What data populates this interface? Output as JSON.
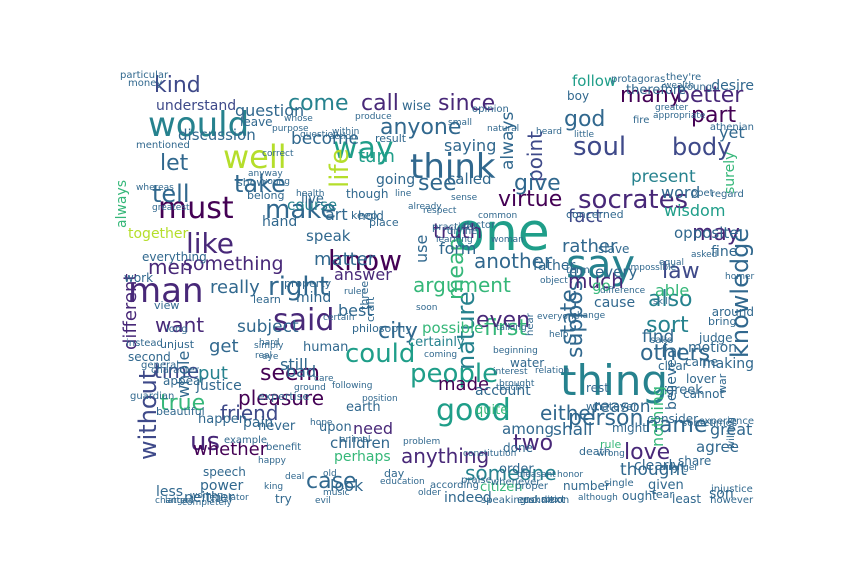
{
  "word_cloud": {
    "palette": [
      "#440154",
      "#482878",
      "#3e4989",
      "#31688e",
      "#26828e",
      "#1f9e89",
      "#35b779",
      "#6ece58",
      "#b5de2b",
      "#fde725"
    ],
    "words": [
      {
        "text": "one"
      },
      {
        "text": "thing"
      },
      {
        "text": "say"
      },
      {
        "text": "think"
      },
      {
        "text": "would"
      },
      {
        "text": "man"
      },
      {
        "text": "good"
      },
      {
        "text": "said"
      },
      {
        "text": "must"
      },
      {
        "text": "way"
      },
      {
        "text": "well"
      },
      {
        "text": "people"
      },
      {
        "text": "socrates"
      },
      {
        "text": "know"
      },
      {
        "text": "make"
      },
      {
        "text": "us"
      },
      {
        "text": "knowledge"
      },
      {
        "text": "like"
      },
      {
        "text": "nature"
      },
      {
        "text": "could"
      },
      {
        "text": "soul"
      },
      {
        "text": "pleasure"
      },
      {
        "text": "right"
      },
      {
        "text": "virtue"
      },
      {
        "text": "something"
      },
      {
        "text": "argument"
      },
      {
        "text": "city"
      },
      {
        "text": "whether"
      },
      {
        "text": "first"
      },
      {
        "text": "state"
      },
      {
        "text": "person"
      },
      {
        "text": "friend"
      },
      {
        "text": "body"
      },
      {
        "text": "even"
      },
      {
        "text": "part"
      },
      {
        "text": "another"
      },
      {
        "text": "without"
      },
      {
        "text": "life"
      },
      {
        "text": "call"
      },
      {
        "text": "since"
      },
      {
        "text": "many"
      },
      {
        "text": "better"
      },
      {
        "text": "point"
      },
      {
        "text": "kind"
      },
      {
        "text": "come"
      },
      {
        "text": "anyone"
      },
      {
        "text": "take"
      },
      {
        "text": "tell"
      },
      {
        "text": "let"
      },
      {
        "text": "see"
      },
      {
        "text": "give"
      },
      {
        "text": "god"
      },
      {
        "text": "may"
      },
      {
        "text": "law"
      },
      {
        "text": "also"
      },
      {
        "text": "sort"
      },
      {
        "text": "suppose"
      },
      {
        "text": "others"
      },
      {
        "text": "either"
      },
      {
        "text": "two"
      },
      {
        "text": "name"
      },
      {
        "text": "love"
      },
      {
        "text": "someone"
      },
      {
        "text": "case"
      },
      {
        "text": "anything"
      },
      {
        "text": "true"
      },
      {
        "text": "time"
      },
      {
        "text": "want"
      },
      {
        "text": "seem"
      },
      {
        "text": "men"
      },
      {
        "text": "mean"
      },
      {
        "text": "truth"
      },
      {
        "text": "much"
      },
      {
        "text": "fact"
      },
      {
        "text": "rather"
      },
      {
        "text": "answer"
      },
      {
        "text": "different"
      },
      {
        "text": "made"
      },
      {
        "text": "still"
      },
      {
        "text": "best"
      },
      {
        "text": "get"
      },
      {
        "text": "put"
      },
      {
        "text": "question"
      },
      {
        "text": "really"
      },
      {
        "text": "matter"
      },
      {
        "text": "become"
      },
      {
        "text": "turn"
      },
      {
        "text": "saying"
      },
      {
        "text": "always"
      },
      {
        "text": "word"
      },
      {
        "text": "present"
      },
      {
        "text": "wisdom"
      },
      {
        "text": "shall"
      },
      {
        "text": "reason"
      },
      {
        "text": "thought"
      },
      {
        "text": "find"
      },
      {
        "text": "far"
      },
      {
        "text": "nothing"
      },
      {
        "text": "possible"
      },
      {
        "text": "certainly"
      },
      {
        "text": "opposite"
      },
      {
        "text": "bad"
      },
      {
        "text": "look"
      },
      {
        "text": "need"
      },
      {
        "text": "whole"
      },
      {
        "text": "justice"
      },
      {
        "text": "subject"
      },
      {
        "text": "mind"
      },
      {
        "text": "speak"
      },
      {
        "text": "form"
      },
      {
        "text": "use"
      },
      {
        "text": "art"
      },
      {
        "text": "called"
      },
      {
        "text": "going"
      },
      {
        "text": "course"
      },
      {
        "text": "follow"
      },
      {
        "text": "father"
      },
      {
        "text": "wise"
      },
      {
        "text": "understand"
      },
      {
        "text": "discussion"
      },
      {
        "text": "hand"
      },
      {
        "text": "yet"
      },
      {
        "text": "surely"
      },
      {
        "text": "able"
      },
      {
        "text": "fine"
      },
      {
        "text": "every"
      },
      {
        "text": "go"
      },
      {
        "text": "cause"
      },
      {
        "text": "among"
      },
      {
        "text": "done"
      },
      {
        "text": "account"
      },
      {
        "text": "quite"
      },
      {
        "text": "children"
      },
      {
        "text": "perhaps"
      },
      {
        "text": "less"
      },
      {
        "text": "neither"
      },
      {
        "text": "power"
      },
      {
        "text": "indeed"
      },
      {
        "text": "citizen"
      },
      {
        "text": "order"
      },
      {
        "text": "great"
      },
      {
        "text": "agree"
      },
      {
        "text": "son"
      },
      {
        "text": "given"
      },
      {
        "text": "clearly"
      },
      {
        "text": "believe"
      },
      {
        "text": "therefore"
      },
      {
        "text": "desire"
      },
      {
        "text": "boy"
      },
      {
        "text": "always"
      },
      {
        "text": "together"
      },
      {
        "text": "everything"
      },
      {
        "text": "work"
      },
      {
        "text": "view"
      },
      {
        "text": "unjust"
      },
      {
        "text": "second"
      },
      {
        "text": "appear"
      },
      {
        "text": "pain"
      },
      {
        "text": "never"
      },
      {
        "text": "speech"
      },
      {
        "text": "try"
      },
      {
        "text": "human"
      },
      {
        "text": "happen"
      },
      {
        "text": "beautiful"
      },
      {
        "text": "upon"
      },
      {
        "text": "earth"
      },
      {
        "text": "consider"
      },
      {
        "text": "death"
      },
      {
        "text": "cannot"
      },
      {
        "text": "making"
      },
      {
        "text": "motion"
      },
      {
        "text": "clear"
      },
      {
        "text": "judge"
      },
      {
        "text": "bring"
      },
      {
        "text": "around"
      },
      {
        "text": "greek"
      },
      {
        "text": "lover"
      },
      {
        "text": "water"
      },
      {
        "text": "rest"
      },
      {
        "text": "ought"
      },
      {
        "text": "fear"
      },
      {
        "text": "least"
      },
      {
        "text": "share"
      },
      {
        "text": "number"
      },
      {
        "text": "next"
      },
      {
        "text": "end"
      },
      {
        "text": "came"
      },
      {
        "text": "might"
      },
      {
        "text": "whatever"
      },
      {
        "text": "rule"
      },
      {
        "text": "live"
      },
      {
        "text": "though"
      },
      {
        "text": "keep"
      },
      {
        "text": "hold"
      },
      {
        "text": "place"
      },
      {
        "text": "leave"
      },
      {
        "text": "show"
      },
      {
        "text": "belong"
      },
      {
        "text": "learn"
      },
      {
        "text": "property"
      },
      {
        "text": "result"
      },
      {
        "text": "concerned"
      },
      {
        "text": "slave"
      },
      {
        "text": "they're"
      },
      {
        "text": "protagoras"
      },
      {
        "text": "fire"
      },
      {
        "text": "athenian"
      },
      {
        "text": "greater"
      },
      {
        "text": "mentioned"
      },
      {
        "text": "expertise"
      },
      {
        "text": "guardian"
      },
      {
        "text": "example"
      },
      {
        "text": "character"
      },
      {
        "text": "general"
      },
      {
        "text": "instead"
      },
      {
        "text": "benefit"
      },
      {
        "text": "philosophy"
      },
      {
        "text": "craft"
      },
      {
        "text": "three"
      },
      {
        "text": "long"
      },
      {
        "text": "day"
      },
      {
        "text": "ask"
      },
      {
        "text": "hear"
      },
      {
        "text": "speaking"
      },
      {
        "text": "whenever"
      },
      {
        "text": "proper"
      },
      {
        "text": "praise"
      },
      {
        "text": "condition"
      },
      {
        "text": "single"
      },
      {
        "text": "sake"
      },
      {
        "text": "war"
      },
      {
        "text": "however"
      },
      {
        "text": "willing"
      },
      {
        "text": "injustice"
      },
      {
        "text": "experience"
      },
      {
        "text": "sometimes"
      },
      {
        "text": "particular"
      },
      {
        "text": "money"
      },
      {
        "text": "term"
      },
      {
        "text": "opinion"
      },
      {
        "text": "young"
      },
      {
        "text": "poet"
      },
      {
        "text": "regard"
      },
      {
        "text": "doctor"
      },
      {
        "text": "divine"
      },
      {
        "text": "practice"
      },
      {
        "text": "appropriate"
      },
      {
        "text": "according"
      },
      {
        "text": "education"
      },
      {
        "text": "music"
      },
      {
        "text": "evil"
      },
      {
        "text": "king"
      },
      {
        "text": "legislator"
      },
      {
        "text": "old"
      },
      {
        "text": "older"
      },
      {
        "text": "skill"
      },
      {
        "text": "relation"
      },
      {
        "text": "brought"
      },
      {
        "text": "talking"
      },
      {
        "text": "changed"
      },
      {
        "text": "woman"
      },
      {
        "text": "soon"
      },
      {
        "text": "teach"
      },
      {
        "text": "interest"
      },
      {
        "text": "pleasant"
      },
      {
        "text": "coming"
      },
      {
        "text": "already"
      },
      {
        "text": "respect"
      },
      {
        "text": "sense"
      },
      {
        "text": "common"
      },
      {
        "text": "asked"
      },
      {
        "text": "purpose"
      },
      {
        "text": "question"
      },
      {
        "text": "within"
      },
      {
        "text": "action"
      },
      {
        "text": "learning"
      },
      {
        "text": "natural"
      },
      {
        "text": "small"
      },
      {
        "text": "heard"
      },
      {
        "text": "little"
      },
      {
        "text": "correct"
      },
      {
        "text": "impossible"
      },
      {
        "text": "whose"
      },
      {
        "text": "wealth"
      },
      {
        "text": "ruler"
      },
      {
        "text": "animal"
      },
      {
        "text": "beginning"
      },
      {
        "text": "position"
      },
      {
        "text": "following"
      },
      {
        "text": "problem"
      },
      {
        "text": "constitution"
      },
      {
        "text": "everyone"
      },
      {
        "text": "produce"
      },
      {
        "text": "line"
      },
      {
        "text": "care"
      },
      {
        "text": "deal"
      },
      {
        "text": "ground"
      },
      {
        "text": "hope"
      },
      {
        "text": "real"
      },
      {
        "text": "simply"
      },
      {
        "text": "anyway"
      },
      {
        "text": "young"
      },
      {
        "text": "wrong"
      },
      {
        "text": "difference"
      },
      {
        "text": "equal"
      },
      {
        "text": "soon"
      },
      {
        "text": "honor"
      },
      {
        "text": "completely"
      },
      {
        "text": "eye"
      },
      {
        "text": "hard"
      },
      {
        "text": "health"
      },
      {
        "text": "certain"
      },
      {
        "text": "happy"
      },
      {
        "text": "stranger"
      },
      {
        "text": "object"
      },
      {
        "text": "change"
      },
      {
        "text": "help"
      },
      {
        "text": "whereas"
      },
      {
        "text": "greatest"
      },
      {
        "text": "although"
      },
      {
        "text": "latter"
      },
      {
        "text": "women"
      },
      {
        "text": "homer"
      },
      {
        "text": "dear"
      }
    ]
  }
}
